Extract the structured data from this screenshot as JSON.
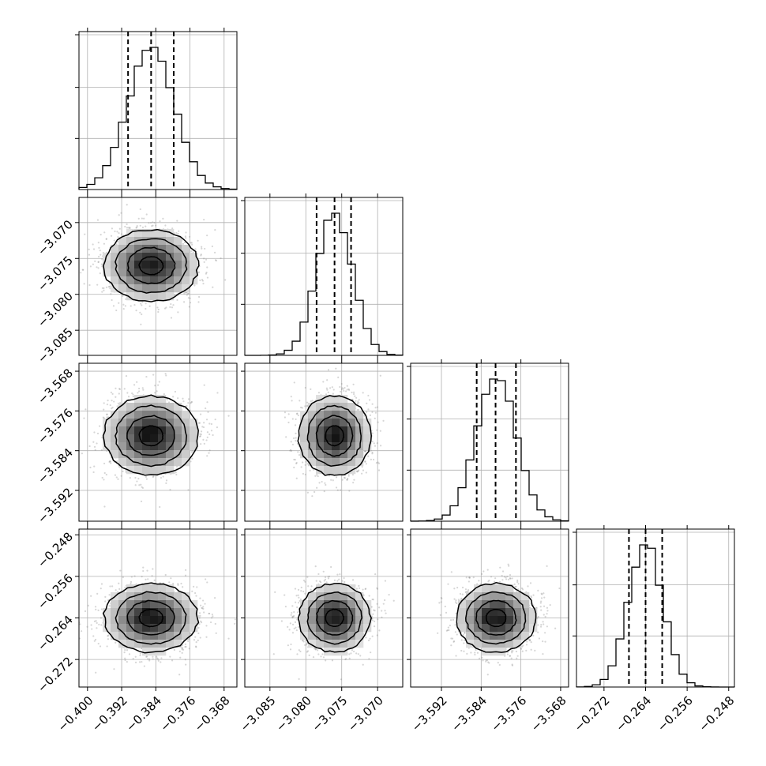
{
  "chart_data": {
    "type": "corner",
    "parameters": [
      {
        "xlim": [
          -0.402,
          -0.365
        ],
        "ticks": [
          -0.4,
          -0.392,
          -0.384,
          -0.376,
          -0.368
        ],
        "tick_labels": [
          "−0.400",
          "−0.392",
          "−0.384",
          "−0.376",
          "−0.368"
        ],
        "mean": -0.3851,
        "sigma": 0.0055,
        "quantiles": [
          -0.3905,
          -0.3851,
          -0.3798
        ]
      },
      {
        "xlim": [
          -3.0885,
          -3.0665
        ],
        "ticks": [
          -3.085,
          -3.08,
          -3.075,
          -3.07
        ],
        "tick_labels": [
          "−3.085",
          "−3.080",
          "−3.075",
          "−3.070"
        ],
        "mean": -3.076,
        "sigma": 0.0025,
        "quantiles": [
          -3.0785,
          -3.076,
          -3.0737
        ]
      },
      {
        "xlim": [
          -3.5982,
          -3.5664
        ],
        "ticks": [
          -3.592,
          -3.584,
          -3.576,
          -3.568
        ],
        "tick_labels": [
          "−3.592",
          "−3.584",
          "−3.576",
          "−3.568"
        ],
        "mean": -3.581,
        "sigma": 0.004,
        "quantiles": [
          -3.5849,
          -3.5811,
          -3.577
        ]
      },
      {
        "xlim": [
          -0.2773,
          -0.2469
        ],
        "ticks": [
          -0.272,
          -0.264,
          -0.256,
          -0.248
        ],
        "tick_labels": [
          "−0.272",
          "−0.264",
          "−0.256",
          "−0.248"
        ],
        "mean": -0.264,
        "sigma": 0.0033,
        "quantiles": [
          -0.2672,
          -0.264,
          -0.2608
        ]
      }
    ],
    "histogram_bins": 20,
    "contour_levels": [
      0.118,
      0.393,
      0.675,
      0.865
    ],
    "grid": true
  }
}
